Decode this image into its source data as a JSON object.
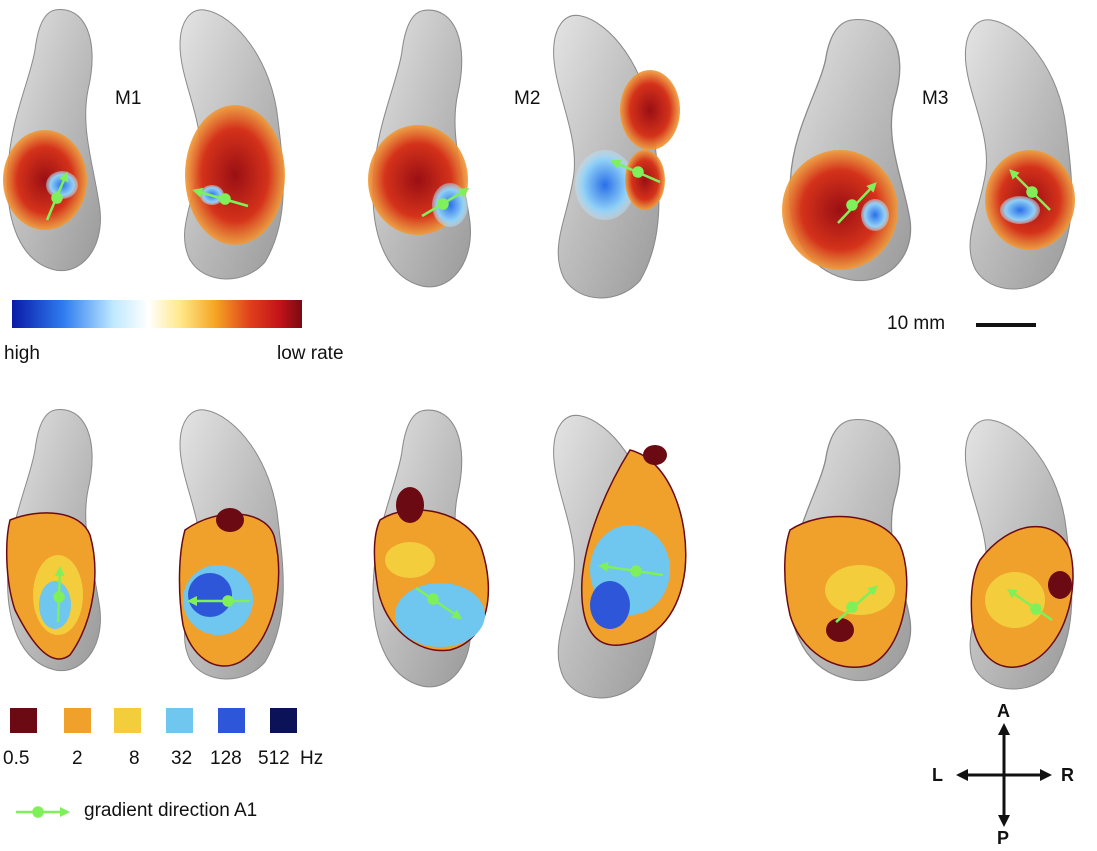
{
  "monkeys": [
    {
      "label": "M1"
    },
    {
      "label": "M2"
    },
    {
      "label": "M3"
    }
  ],
  "rate_colorbar": {
    "low_label": "high",
    "high_label": "low rate",
    "colors": [
      "#0a1aa8",
      "#2f7df0",
      "#bfe9ff",
      "#ffffff",
      "#ffe98a",
      "#f5a623",
      "#e0401c",
      "#c4141a",
      "#7a0a12"
    ]
  },
  "frequency_legend": {
    "unit": "Hz",
    "bins": [
      {
        "label": "0.5",
        "color": "#6b0a12"
      },
      {
        "label": "2",
        "color": "#f0a12b"
      },
      {
        "label": "8",
        "color": "#f3cd3b"
      },
      {
        "label": "32",
        "color": "#6fc6ef"
      },
      {
        "label": "128",
        "color": "#2e56d9"
      },
      {
        "label": "512",
        "color": "#0c1257"
      }
    ]
  },
  "gradient_legend": {
    "label": "gradient direction A1",
    "color": "#7ff05a"
  },
  "scale_bar": {
    "label": "10 mm"
  },
  "orientation": {
    "anterior": "A",
    "posterior": "P",
    "left": "L",
    "right": "R"
  }
}
